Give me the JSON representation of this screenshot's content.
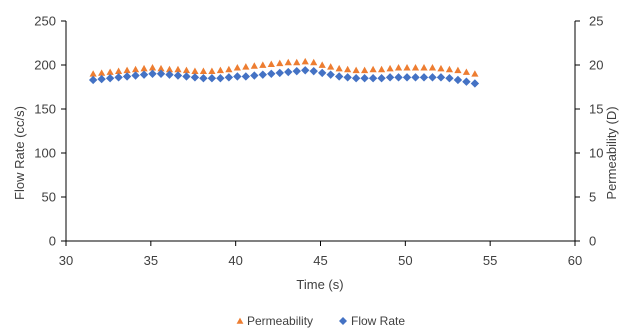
{
  "chart_data": {
    "type": "scatter",
    "xlabel": "Time (s)",
    "ylabel_left": "Flow Rate (cc/s)",
    "ylabel_right": "Permeability (D)",
    "xlim": [
      30,
      60
    ],
    "ylim_left": [
      0,
      250
    ],
    "ylim_right": [
      0,
      25
    ],
    "x_ticks": [
      "30",
      "35",
      "40",
      "45",
      "50",
      "55",
      "60"
    ],
    "y_left_ticks": [
      "0",
      "50",
      "100",
      "150",
      "200",
      "250"
    ],
    "y_right_ticks": [
      "0",
      "5",
      "10",
      "15",
      "20",
      "25"
    ],
    "grid": false,
    "legend_position": "bottom",
    "series": [
      {
        "name": "Permeability",
        "axis": "right",
        "marker": "triangle",
        "color": "#ED7D31",
        "x": [
          31.6,
          32.1,
          32.6,
          33.1,
          33.6,
          34.1,
          34.6,
          35.1,
          35.6,
          36.1,
          36.6,
          37.1,
          37.6,
          38.1,
          38.6,
          39.1,
          39.6,
          40.1,
          40.6,
          41.1,
          41.6,
          42.1,
          42.6,
          43.1,
          43.6,
          44.1,
          44.6,
          45.1,
          45.6,
          46.1,
          46.6,
          47.1,
          47.6,
          48.1,
          48.6,
          49.1,
          49.6,
          50.1,
          50.6,
          51.1,
          51.6,
          52.1,
          52.6,
          53.1,
          53.6,
          54.1
        ],
        "y": [
          19.0,
          19.1,
          19.2,
          19.3,
          19.4,
          19.5,
          19.6,
          19.7,
          19.6,
          19.5,
          19.5,
          19.4,
          19.3,
          19.3,
          19.3,
          19.4,
          19.5,
          19.7,
          19.8,
          19.9,
          20.0,
          20.1,
          20.2,
          20.3,
          20.3,
          20.4,
          20.3,
          20.0,
          19.8,
          19.6,
          19.5,
          19.4,
          19.4,
          19.5,
          19.5,
          19.6,
          19.7,
          19.7,
          19.7,
          19.7,
          19.7,
          19.6,
          19.5,
          19.4,
          19.2,
          19.0
        ]
      },
      {
        "name": "Flow Rate",
        "axis": "left",
        "marker": "diamond",
        "color": "#4472C4",
        "x": [
          31.6,
          32.1,
          32.6,
          33.1,
          33.6,
          34.1,
          34.6,
          35.1,
          35.6,
          36.1,
          36.6,
          37.1,
          37.6,
          38.1,
          38.6,
          39.1,
          39.6,
          40.1,
          40.6,
          41.1,
          41.6,
          42.1,
          42.6,
          43.1,
          43.6,
          44.1,
          44.6,
          45.1,
          45.6,
          46.1,
          46.6,
          47.1,
          47.6,
          48.1,
          48.6,
          49.1,
          49.6,
          50.1,
          50.6,
          51.1,
          51.6,
          52.1,
          52.6,
          53.1,
          53.6,
          54.1
        ],
        "y": [
          183,
          184,
          185,
          186,
          187,
          188,
          189,
          190,
          190,
          189,
          188,
          187,
          186,
          185,
          185,
          185,
          186,
          187,
          187,
          188,
          189,
          190,
          191,
          192,
          193,
          194,
          193,
          191,
          189,
          187,
          186,
          185,
          185,
          185,
          185,
          186,
          186,
          186,
          186,
          186,
          186,
          186,
          185,
          183,
          181,
          179
        ]
      }
    ]
  }
}
